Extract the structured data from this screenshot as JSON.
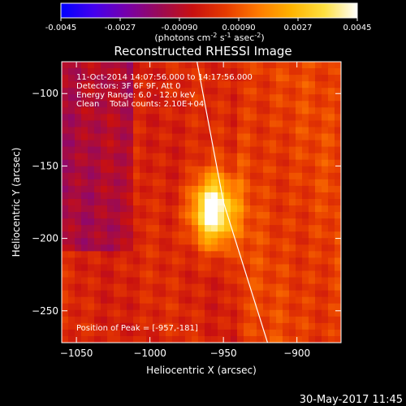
{
  "colors": {
    "background": "#000000",
    "foreground": "#ffffff",
    "colormap": [
      "#0000ff",
      "#4400ee",
      "#7700aa",
      "#9a0a55",
      "#c81010",
      "#e63a00",
      "#ff7a00",
      "#ffb300",
      "#ffe040",
      "#ffffff"
    ]
  },
  "colorbar": {
    "tick_labels": [
      "-0.0045",
      "-0.0027",
      "-0.00090",
      "0.00090",
      "0.0027",
      "0.0045"
    ],
    "tick_values": [
      -0.0045,
      -0.0027,
      -0.0009,
      0.0009,
      0.0027,
      0.0045
    ],
    "range": [
      -0.0045,
      0.0045
    ],
    "unit_main": "(photons cm",
    "unit_sup1": "-2",
    "unit_mid1": " s",
    "unit_sup2": "-1",
    "unit_mid2": " asec",
    "unit_sup3": "-2",
    "unit_end": ")"
  },
  "chart_data": {
    "type": "heatmap",
    "title": "Reconstructed RHESSI Image",
    "xlabel": "Heliocentric X (arcsec)",
    "ylabel": "Heliocentric Y (arcsec)",
    "xlim": [
      -1060,
      -870
    ],
    "ylim": [
      -272,
      -78
    ],
    "x_ticks": [
      -1050,
      -1000,
      -950,
      -900
    ],
    "y_ticks": [
      -100,
      -150,
      -200,
      -250
    ],
    "x_tick_labels": [
      "−1050",
      "−1000",
      "−950",
      "−900"
    ],
    "y_tick_labels": [
      "−100",
      "−150",
      "−200",
      "−250"
    ],
    "peak": {
      "x": -957,
      "y": -181
    },
    "limb_line": [
      [
        -968,
        -78
      ],
      [
        -950,
        -175
      ],
      [
        -920,
        -272
      ]
    ],
    "annotations": [
      "11-Oct-2014 14:07:56.000 to 14:17:56.000",
      "Detectors: 3F 6F 9F, Att 0",
      "Energy Range: 6.0 - 12.0 keV",
      "Clean    Total counts: 2.10E+04"
    ],
    "peak_label": "Position of Peak = [-957,-181]"
  },
  "footer": {
    "timestamp": "30-May-2017 11:45"
  }
}
